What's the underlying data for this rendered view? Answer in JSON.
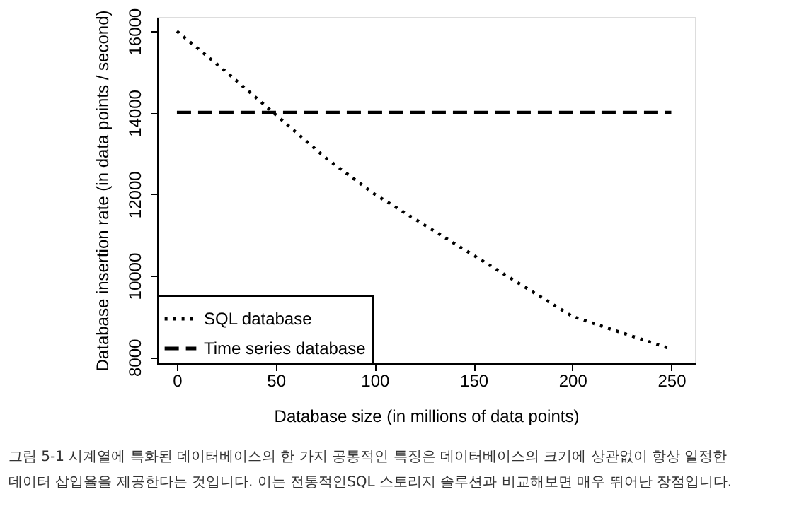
{
  "chart_data": {
    "type": "line",
    "xlabel": "Database size (in millions of data points)",
    "ylabel": "Database insertion rate (in data points / second)",
    "x": [
      0,
      25,
      50,
      75,
      100,
      125,
      150,
      175,
      200,
      225,
      250
    ],
    "series": [
      {
        "name": "SQL database",
        "color": "#000000",
        "line_style": "dotted",
        "values": [
          16000,
          15000,
          13950,
          12900,
          12000,
          11250,
          10500,
          9750,
          9000,
          8600,
          8200
        ]
      },
      {
        "name": "Time series database",
        "color": "#000000",
        "line_style": "dashed",
        "values": [
          14000,
          14000,
          14000,
          14000,
          14000,
          14000,
          14000,
          14000,
          14000,
          14000,
          14000
        ]
      }
    ],
    "xlim": [
      -10,
      262
    ],
    "xticks": [
      0,
      50,
      100,
      150,
      200,
      250
    ],
    "ylim": [
      7850,
      16350
    ],
    "yticks": [
      8000,
      10000,
      12000,
      14000,
      16000
    ],
    "grid": false,
    "legend": "bottom left",
    "marker": "none",
    "annotations": [
      "그림 5-1 시계열에 특화된 데이터베이스의 한 가지 공통적인 특징은 데이터베이스의 크기에 상관없이 항상 일정한 데이터 삽입율을 제공한다는 것입니다. 이는 전통적인SQL 스토리지 솔루션과 비교해보면 매우 뛰어난 장점입니다."
    ]
  }
}
